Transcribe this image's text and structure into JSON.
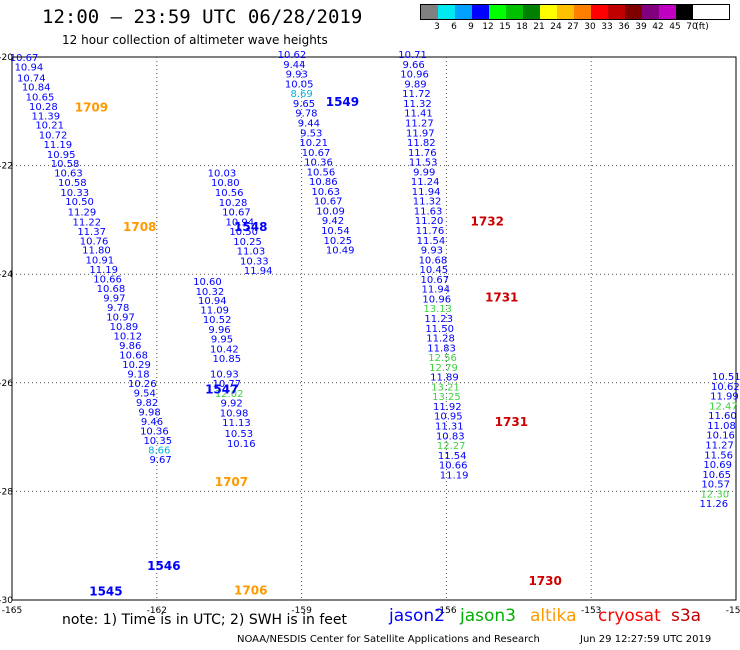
{
  "header": {
    "title": "12:00 – 23:59 UTC 06/28/2019",
    "subtitle": "12 hour collection of altimeter wave heights"
  },
  "scale": {
    "colors": [
      "#808080",
      "#00e8f0",
      "#00a0ff",
      "#0000ff",
      "#00ff00",
      "#00c000",
      "#008000",
      "#ffff00",
      "#ffc000",
      "#ff8000",
      "#ff0000",
      "#c00000",
      "#800000",
      "#800080",
      "#c000c0",
      "#000000"
    ],
    "labels": [
      "3",
      "6",
      "9",
      "12",
      "15",
      "18",
      "21",
      "24",
      "27",
      "30",
      "33",
      "36",
      "39",
      "42",
      "45",
      "70",
      "(ft)"
    ]
  },
  "axes": {
    "lat_labels": [
      "-20",
      "-22",
      "-24",
      "-26",
      "-28",
      "-30"
    ],
    "lon_labels": [
      "-165",
      "-162",
      "-159",
      "-156",
      "-153",
      "-150"
    ]
  },
  "footnote": "note:  1) Time is in UTC;  2) SWH is in feet",
  "legend": [
    {
      "name": "jason2",
      "color": "#0000ff"
    },
    {
      "name": "jason3",
      "color": "#00b000"
    },
    {
      "name": "altika",
      "color": "#ff9900"
    },
    {
      "name": "cryosat",
      "color": "#ff0000"
    },
    {
      "name": "s3a",
      "color": "#c00000"
    }
  ],
  "credit": "NOAA/NESDIS Center for Satellite Applications and Research",
  "timestamp": "Jun 29 12:27:59 UTC 2019",
  "tracks": [
    {
      "sat": "jason2",
      "color": "#0000ff",
      "label": "1545",
      "label_lat": -29.92,
      "label_lon": -163.4,
      "points": [
        [
          -20.07,
          -164.75,
          "10.67"
        ],
        [
          -20.25,
          -164.65,
          "10.94"
        ],
        [
          -20.45,
          -164.6,
          "10.74"
        ],
        [
          -20.62,
          -164.5,
          "10.84"
        ],
        [
          -20.8,
          -164.42,
          "10.65"
        ],
        [
          -20.98,
          -164.35,
          "10.28"
        ],
        [
          -21.15,
          -164.3,
          "11.39"
        ],
        [
          -21.32,
          -164.22,
          "10.21"
        ],
        [
          -21.5,
          -164.15,
          "10.72"
        ],
        [
          -21.68,
          -164.05,
          "11.19"
        ],
        [
          -21.86,
          -163.98,
          "10.95"
        ],
        [
          -22.03,
          -163.9,
          "10.58"
        ],
        [
          -22.2,
          -163.83,
          "10.63"
        ],
        [
          -22.38,
          -163.75,
          "10.58"
        ],
        [
          -22.56,
          -163.7,
          "10.33"
        ],
        [
          -22.73,
          -163.6,
          "10.50"
        ],
        [
          -22.92,
          -163.55,
          "11.29"
        ],
        [
          -23.1,
          -163.45,
          "11.22"
        ],
        [
          -23.28,
          -163.35,
          "11.37"
        ],
        [
          -23.45,
          -163.3,
          "10.76"
        ],
        [
          -23.62,
          -163.25,
          "11.80"
        ],
        [
          -23.8,
          -163.18,
          "10.91"
        ],
        [
          -23.98,
          -163.1,
          "11.19"
        ],
        [
          -24.15,
          -163.02,
          "10.66"
        ],
        [
          -24.33,
          -162.95,
          "10.68"
        ],
        [
          -24.5,
          -162.88,
          "9.97"
        ],
        [
          -24.68,
          -162.8,
          "9.78"
        ],
        [
          -24.85,
          -162.75,
          "10.97"
        ],
        [
          -25.03,
          -162.68,
          "10.89"
        ],
        [
          -25.2,
          -162.6,
          "10.12"
        ],
        [
          -25.38,
          -162.55,
          "9.86"
        ],
        [
          -25.55,
          -162.48,
          "10.68"
        ],
        [
          -25.73,
          -162.42,
          "10.29"
        ],
        [
          -25.9,
          -162.38,
          "9.18"
        ],
        [
          -26.08,
          -162.3,
          "10.26"
        ],
        [
          -26.25,
          -162.25,
          "9.54"
        ],
        [
          -26.43,
          -162.2,
          "9.82"
        ],
        [
          -26.6,
          -162.15,
          "9.98"
        ],
        [
          -26.78,
          -162.1,
          "9.46"
        ],
        [
          -26.95,
          -162.05,
          "10.36"
        ],
        [
          -27.13,
          -161.98,
          "10.35"
        ],
        [
          -27.3,
          -161.95,
          "8.66",
          "#00b0e0"
        ],
        [
          -27.48,
          -161.92,
          "9.67"
        ]
      ]
    },
    {
      "sat": "jason2",
      "color": "#0000ff",
      "label": "1546",
      "label_lat": -29.45,
      "label_lon": -162.2,
      "points": [
        [
          -25.9,
          -160.6,
          "10.93"
        ],
        [
          -26.08,
          -160.55,
          "10.77"
        ],
        [
          -26.26,
          -160.5,
          "12.02",
          "#40d040"
        ],
        [
          -26.44,
          -160.45,
          "9.92"
        ],
        [
          -26.62,
          -160.4,
          "10.98"
        ],
        [
          -26.8,
          -160.35,
          "11.13"
        ],
        [
          -27.0,
          -160.3,
          "10.53"
        ],
        [
          -27.18,
          -160.25,
          "10.16"
        ]
      ]
    },
    {
      "sat": "jason2",
      "color": "#0000ff",
      "label": "1547",
      "label_lat": -26.2,
      "label_lon": -161.0,
      "points": [
        [
          -24.2,
          -160.95,
          "10.60"
        ],
        [
          -24.38,
          -160.9,
          "10.32"
        ],
        [
          -24.55,
          -160.85,
          "10.94"
        ],
        [
          -24.72,
          -160.8,
          "11.09"
        ],
        [
          -24.9,
          -160.75,
          "10.52"
        ],
        [
          -25.08,
          -160.7,
          "9.96"
        ],
        [
          -25.26,
          -160.65,
          "9.95"
        ],
        [
          -25.44,
          -160.6,
          "10.42"
        ],
        [
          -25.62,
          -160.55,
          "10.85"
        ]
      ]
    },
    {
      "sat": "jason2",
      "color": "#0000ff",
      "label": "1548",
      "label_lat": -23.2,
      "label_lon": -160.4,
      "points": [
        [
          -22.2,
          -160.65,
          "10.03"
        ],
        [
          -22.38,
          -160.58,
          "10.80"
        ],
        [
          -22.56,
          -160.5,
          "10.56"
        ],
        [
          -22.74,
          -160.42,
          "10.28"
        ],
        [
          -22.92,
          -160.35,
          "10.67"
        ],
        [
          -23.1,
          -160.28,
          "10.94"
        ],
        [
          -23.28,
          -160.2,
          "10.50"
        ],
        [
          -23.46,
          -160.12,
          "10.25"
        ],
        [
          -23.64,
          -160.05,
          "11.03"
        ],
        [
          -23.82,
          -159.98,
          "10.33"
        ],
        [
          -24.0,
          -159.9,
          "11.94"
        ]
      ]
    },
    {
      "sat": "jason2",
      "color": "#0000ff",
      "label": "1549",
      "label_lat": -20.9,
      "label_lon": -158.5,
      "points": [
        [
          -20.02,
          -159.2,
          "10.62"
        ],
        [
          -20.2,
          -159.15,
          "9.44"
        ],
        [
          -20.38,
          -159.1,
          "9.93"
        ],
        [
          -20.56,
          -159.05,
          "10.05"
        ],
        [
          -20.74,
          -159.0,
          "8.69",
          "#00b0e0"
        ],
        [
          -20.92,
          -158.95,
          "9.65"
        ],
        [
          -21.1,
          -158.9,
          "9.78"
        ],
        [
          -21.28,
          -158.85,
          "9.44"
        ],
        [
          -21.46,
          -158.8,
          "9.53"
        ],
        [
          -21.64,
          -158.75,
          "10.21"
        ],
        [
          -21.82,
          -158.7,
          "10.67"
        ],
        [
          -22.0,
          -158.65,
          "10.36"
        ],
        [
          -22.18,
          -158.6,
          "10.56"
        ],
        [
          -22.36,
          -158.55,
          "10.86"
        ],
        [
          -22.54,
          -158.5,
          "10.63"
        ],
        [
          -22.72,
          -158.45,
          "10.67"
        ],
        [
          -22.9,
          -158.4,
          "10.09"
        ],
        [
          -23.08,
          -158.35,
          "9.42"
        ],
        [
          -23.26,
          -158.3,
          "10.54"
        ],
        [
          -23.44,
          -158.25,
          "10.25"
        ],
        [
          -23.62,
          -158.2,
          "10.49"
        ]
      ]
    },
    {
      "sat": "jason2",
      "color": "#0000ff",
      "label": "",
      "label_lat": 0,
      "label_lon": 0,
      "points": [
        [
          -20.02,
          -156.7,
          "10.71"
        ],
        [
          -20.2,
          -156.68,
          "9.66"
        ],
        [
          -20.38,
          -156.66,
          "10.96"
        ],
        [
          -20.56,
          -156.64,
          "9.89"
        ],
        [
          -20.74,
          -156.62,
          "11.72"
        ],
        [
          -20.92,
          -156.6,
          "11.32"
        ],
        [
          -21.1,
          -156.58,
          "11.41"
        ],
        [
          -21.28,
          -156.56,
          "11.27"
        ],
        [
          -21.46,
          -156.54,
          "11.97"
        ],
        [
          -21.64,
          -156.52,
          "11.82"
        ],
        [
          -21.82,
          -156.5,
          "11.76"
        ],
        [
          -22.0,
          -156.48,
          "11.53"
        ],
        [
          -22.18,
          -156.46,
          "9.99"
        ],
        [
          -22.36,
          -156.44,
          "11.24"
        ],
        [
          -22.54,
          -156.42,
          "11.94"
        ],
        [
          -22.72,
          -156.4,
          "11.32"
        ],
        [
          -22.9,
          -156.38,
          "11.63"
        ],
        [
          -23.08,
          -156.36,
          "11.20"
        ],
        [
          -23.26,
          -156.34,
          "11.76"
        ],
        [
          -23.44,
          -156.32,
          "11.54"
        ],
        [
          -23.62,
          -156.3,
          "9.93"
        ],
        [
          -23.8,
          -156.28,
          "10.68"
        ],
        [
          -23.98,
          -156.26,
          "10.45"
        ],
        [
          -24.16,
          -156.24,
          "10.67"
        ],
        [
          -24.34,
          -156.22,
          "11.94"
        ],
        [
          -24.52,
          -156.2,
          "10.96"
        ],
        [
          -24.7,
          -156.18,
          "13.13",
          "#40d040"
        ],
        [
          -24.88,
          -156.16,
          "11.23"
        ],
        [
          -25.06,
          -156.14,
          "11.50"
        ],
        [
          -25.24,
          -156.12,
          "11.28"
        ],
        [
          -25.42,
          -156.1,
          "11.83"
        ],
        [
          -25.6,
          -156.08,
          "12.56",
          "#40d040"
        ],
        [
          -25.78,
          -156.06,
          "12.79",
          "#40d040"
        ],
        [
          -25.96,
          -156.04,
          "11.89"
        ],
        [
          -26.14,
          -156.02,
          "13.21",
          "#40d040"
        ],
        [
          -26.32,
          -156.0,
          "13.25",
          "#40d040"
        ],
        [
          -26.5,
          -155.98,
          "11.92"
        ],
        [
          -26.68,
          -155.96,
          "10.95"
        ],
        [
          -26.86,
          -155.94,
          "11.31"
        ],
        [
          -27.04,
          -155.92,
          "10.83"
        ],
        [
          -27.22,
          -155.9,
          "12.27",
          "#40d040"
        ],
        [
          -27.4,
          -155.88,
          "11.54"
        ],
        [
          -27.58,
          -155.86,
          "10.66"
        ],
        [
          -27.76,
          -155.84,
          "11.19"
        ]
      ]
    },
    {
      "sat": "jason2",
      "color": "#0000ff",
      "label": "",
      "label_lat": 0,
      "label_lon": 0,
      "points": [
        [
          -25.95,
          -150.2,
          "10.51"
        ],
        [
          -26.13,
          -150.22,
          "10.62"
        ],
        [
          -26.31,
          -150.24,
          "11.99"
        ],
        [
          -26.49,
          -150.26,
          "12.47",
          "#40d040"
        ],
        [
          -26.67,
          -150.28,
          "11.60"
        ],
        [
          -26.85,
          -150.3,
          "11.08"
        ],
        [
          -27.03,
          -150.32,
          "10.16"
        ],
        [
          -27.21,
          -150.34,
          "11.27"
        ],
        [
          -27.39,
          -150.36,
          "11.56"
        ],
        [
          -27.57,
          -150.38,
          "10.69"
        ],
        [
          -27.75,
          -150.4,
          "10.65"
        ],
        [
          -27.93,
          -150.42,
          "10.57"
        ],
        [
          -28.11,
          -150.44,
          "12.30",
          "#40d040"
        ],
        [
          -28.29,
          -150.46,
          "11.26"
        ]
      ]
    }
  ],
  "orbit_labels": [
    {
      "text": "1709",
      "color": "#ff9900",
      "lat": -21.0,
      "lon": -163.7
    },
    {
      "text": "1708",
      "color": "#ff9900",
      "lat": -23.2,
      "lon": -162.7
    },
    {
      "text": "1707",
      "color": "#ff9900",
      "lat": -27.9,
      "lon": -160.8
    },
    {
      "text": "1706",
      "color": "#ff9900",
      "lat": -29.9,
      "lon": -160.4
    },
    {
      "text": "1732",
      "color": "#cc0000",
      "lat": -23.1,
      "lon": -155.5
    },
    {
      "text": "1731",
      "color": "#cc0000",
      "lat": -24.5,
      "lon": -155.2
    },
    {
      "text": "1731",
      "color": "#cc0000",
      "lat": -26.8,
      "lon": -155.0
    },
    {
      "text": "1730",
      "color": "#cc0000",
      "lat": -29.72,
      "lon": -154.3
    }
  ]
}
